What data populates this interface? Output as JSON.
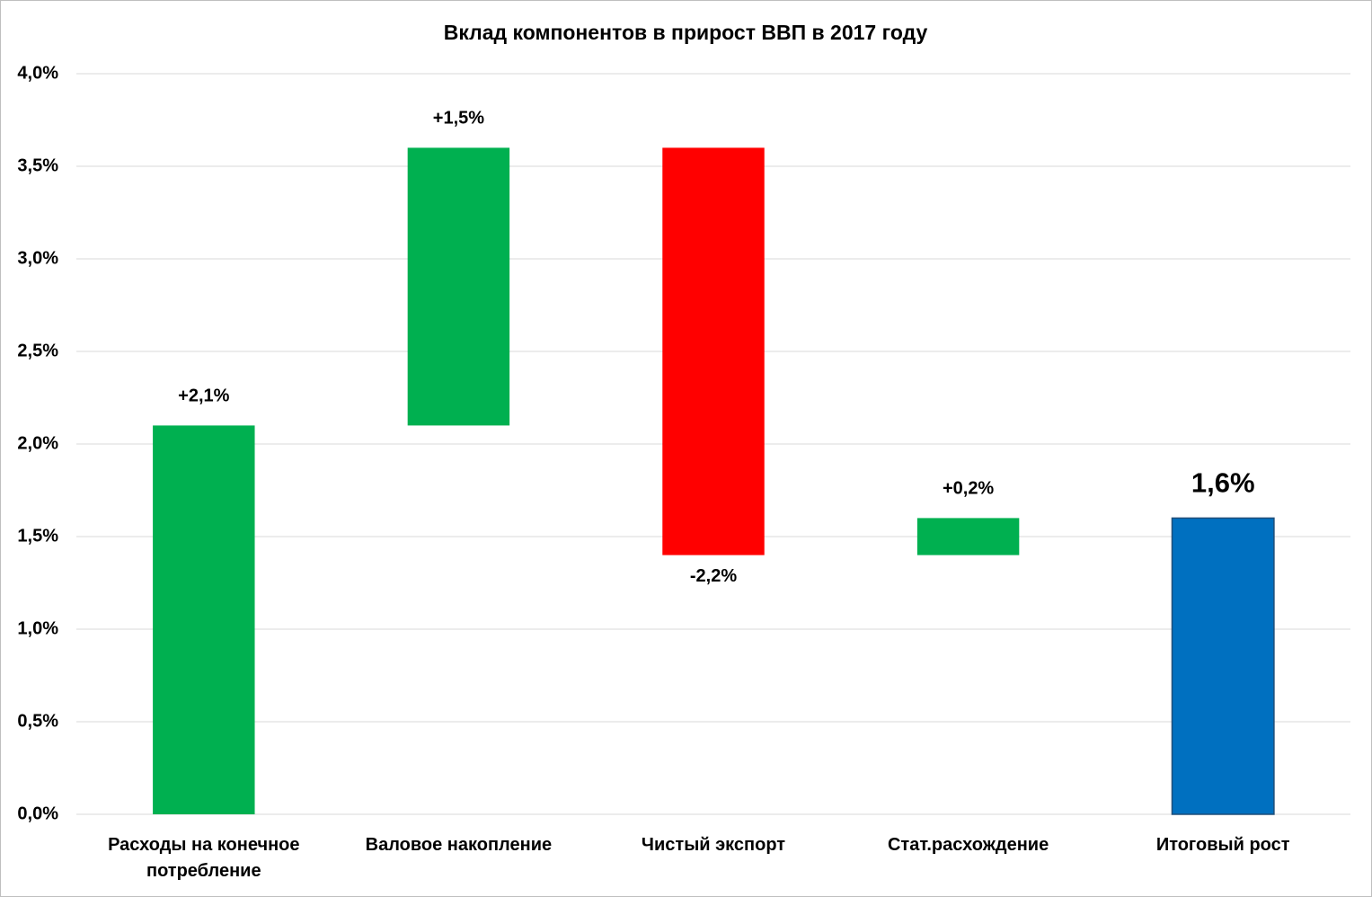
{
  "chart_data": {
    "type": "waterfall",
    "title": "Вклад компонентов  в прирост ВВП в 2017 году",
    "categories": [
      "Расходы на конечное потребление",
      "Валовое накопление",
      "Чистый экспорт",
      "Стат.расхождение",
      "Итоговый рост"
    ],
    "values": [
      2.1,
      1.5,
      -2.2,
      0.2,
      1.6
    ],
    "value_labels": [
      "+2,1%",
      "+1,5%",
      "-2,2%",
      "+0,2%",
      "1,6%"
    ],
    "measure": [
      "relative",
      "relative",
      "relative",
      "relative",
      "total"
    ],
    "colors": [
      "#00b050",
      "#00b050",
      "#ff0000",
      "#00b050",
      "#0070c0"
    ],
    "ylim": [
      0,
      4
    ],
    "yticks": [
      {
        "value": 0,
        "label": "0,0%"
      },
      {
        "value": 0.5,
        "label": "0,5%"
      },
      {
        "value": 1,
        "label": "1,0%"
      },
      {
        "value": 1.5,
        "label": "1,5%"
      },
      {
        "value": 2,
        "label": "2,0%"
      },
      {
        "value": 2.5,
        "label": "2,5%"
      },
      {
        "value": 3,
        "label": "3,0%"
      },
      {
        "value": 3.5,
        "label": "3,5%"
      },
      {
        "value": 4,
        "label": "4,0%"
      }
    ],
    "grid": true
  }
}
